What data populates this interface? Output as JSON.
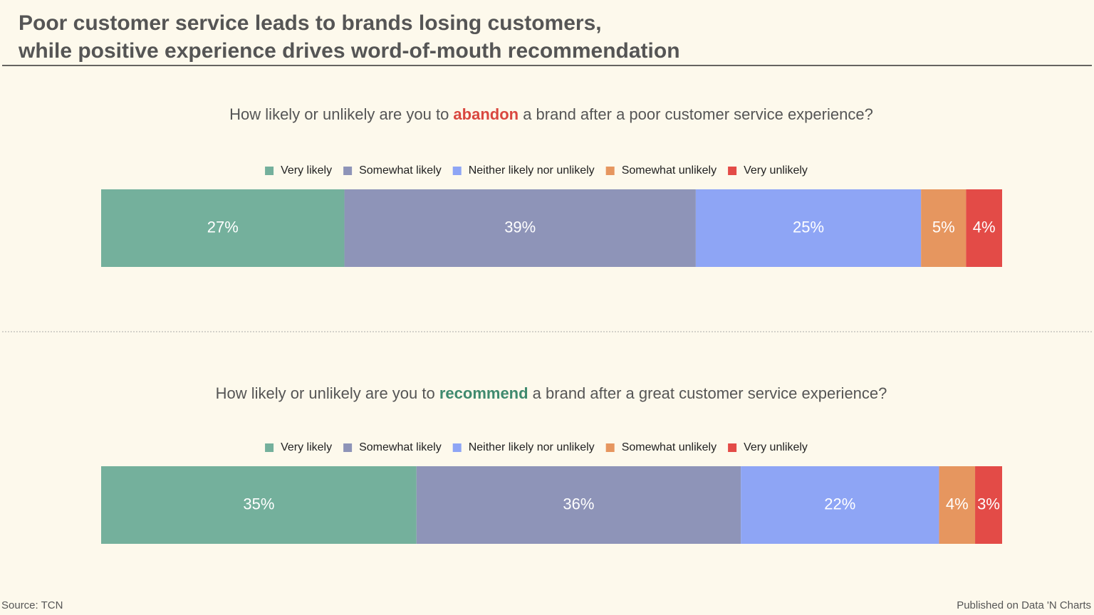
{
  "title": [
    "Poor customer service leads to brands losing customers,",
    "while positive experience drives word-of-mouth recommendation"
  ],
  "source": "Source: TCN",
  "publisher": "Published on Data 'N Charts",
  "chart_data": [
    {
      "type": "stacked-bar",
      "question": {
        "before": "How likely or unlikely are you to ",
        "keyword": "abandon",
        "after": " a brand after a poor customer service experience?",
        "keyword_color": "#d9473f"
      },
      "xlim": [
        0,
        100
      ],
      "series": [
        {
          "name": "Very likely",
          "color": "#74b09c",
          "values": [
            27
          ],
          "value_labels": [
            "27%"
          ]
        },
        {
          "name": "Somewhat likely",
          "color": "#8e94b8",
          "values": [
            39
          ],
          "value_labels": [
            "39%"
          ]
        },
        {
          "name": "Neither likely nor unlikely",
          "color": "#8ea5f5",
          "values": [
            25
          ],
          "value_labels": [
            "25%"
          ]
        },
        {
          "name": "Somewhat unlikely",
          "color": "#e6965f",
          "values": [
            5
          ],
          "value_labels": [
            "5%"
          ]
        },
        {
          "name": "Very unlikely",
          "color": "#e34b47",
          "values": [
            4
          ],
          "value_labels": [
            "4%"
          ]
        }
      ]
    },
    {
      "type": "stacked-bar",
      "question": {
        "before": "How likely or unlikely are you to ",
        "keyword": "recommend",
        "after": " a brand after a great customer service experience?",
        "keyword_color": "#3f8a6e"
      },
      "xlim": [
        0,
        100
      ],
      "series": [
        {
          "name": "Very likely",
          "color": "#74b09c",
          "values": [
            35
          ],
          "value_labels": [
            "35%"
          ]
        },
        {
          "name": "Somewhat likely",
          "color": "#8e94b8",
          "values": [
            36
          ],
          "value_labels": [
            "36%"
          ]
        },
        {
          "name": "Neither likely nor unlikely",
          "color": "#8ea5f5",
          "values": [
            22
          ],
          "value_labels": [
            "22%"
          ]
        },
        {
          "name": "Somewhat unlikely",
          "color": "#e6965f",
          "values": [
            4
          ],
          "value_labels": [
            "4%"
          ]
        },
        {
          "name": "Very unlikely",
          "color": "#e34b47",
          "values": [
            3
          ],
          "value_labels": [
            "3%"
          ]
        }
      ]
    }
  ]
}
